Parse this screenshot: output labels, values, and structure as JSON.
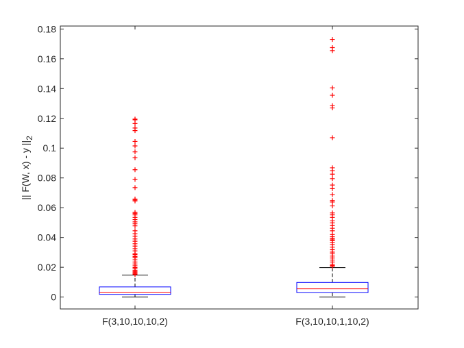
{
  "chart_data": {
    "type": "box",
    "ylabel": "|| F(W, x) - y ||",
    "ylabel_subscript": "2",
    "ylim": [
      -0.008,
      0.182
    ],
    "yticks": [
      0,
      0.02,
      0.04,
      0.06,
      0.08,
      0.1,
      0.12,
      0.14,
      0.16,
      0.18
    ],
    "ytick_labels": [
      "0",
      "0.02",
      "0.04",
      "0.06",
      "0.08",
      "0.1",
      "0.12",
      "0.14",
      "0.16",
      "0.18"
    ],
    "grid": false,
    "categories": [
      "F(3,10,10,10,2)",
      "F(3,10,10,1,10,2)"
    ],
    "boxes": [
      {
        "category": "F(3,10,10,10,2)",
        "whisker_low": 0.0,
        "q1": 0.0018,
        "median": 0.0032,
        "q3": 0.0068,
        "whisker_high": 0.0148,
        "outliers": [
          0.0152,
          0.0158,
          0.0165,
          0.0172,
          0.018,
          0.019,
          0.0198,
          0.021,
          0.0222,
          0.0235,
          0.025,
          0.0265,
          0.0272,
          0.0285,
          0.029,
          0.031,
          0.0325,
          0.0342,
          0.0358,
          0.0375,
          0.039,
          0.0408,
          0.0425,
          0.0445,
          0.0478,
          0.0492,
          0.0505,
          0.052,
          0.0535,
          0.0552,
          0.0562,
          0.0568,
          0.0645,
          0.0652,
          0.0658,
          0.0735,
          0.079,
          0.0855,
          0.0935,
          0.0975,
          0.1015,
          0.1045,
          0.1118,
          0.1135,
          0.1165,
          0.119,
          0.1195
        ]
      },
      {
        "category": "F(3,10,10,1,10,2)",
        "whisker_low": 0.0,
        "q1": 0.003,
        "median": 0.0055,
        "q3": 0.0098,
        "whisker_high": 0.0198,
        "outliers": [
          0.0205,
          0.0212,
          0.022,
          0.0235,
          0.0248,
          0.0262,
          0.0275,
          0.029,
          0.0302,
          0.0318,
          0.0335,
          0.0352,
          0.0365,
          0.0378,
          0.0385,
          0.0392,
          0.0405,
          0.042,
          0.0445,
          0.0462,
          0.048,
          0.0498,
          0.0512,
          0.0535,
          0.0552,
          0.0565,
          0.0612,
          0.0638,
          0.0648,
          0.0688,
          0.0728,
          0.0752,
          0.0795,
          0.0825,
          0.0848,
          0.0868,
          0.107,
          0.127,
          0.1285,
          0.1355,
          0.1405,
          0.1655,
          0.1675,
          0.173
        ]
      }
    ],
    "colors": {
      "box": "#0000ff",
      "median": "#ff0000",
      "whisker": "#000000",
      "outlier": "#ff0000",
      "axis": "#262626"
    },
    "outlier_marker": "+"
  }
}
